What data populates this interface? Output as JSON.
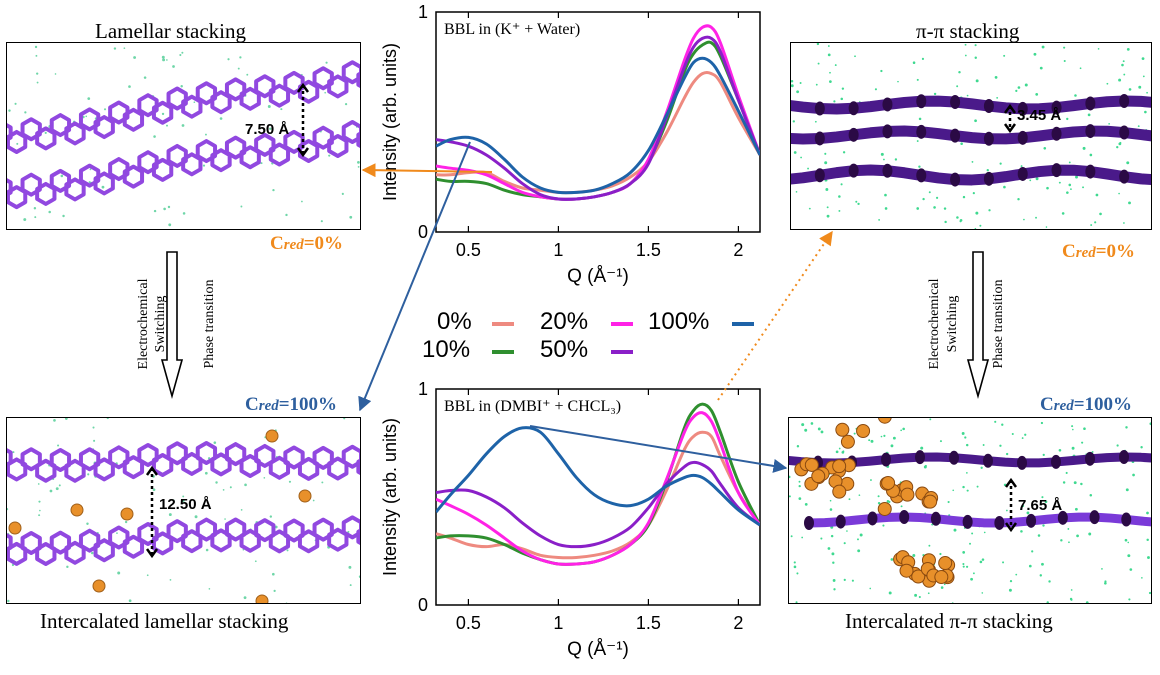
{
  "panels": {
    "top_left": {
      "title": "Lamellar stacking",
      "distance": "7.50 Å",
      "cred_prefix": "C",
      "cred_sub": "red",
      "cred_value": "=0%",
      "cred_color": "#f08a1c"
    },
    "bottom_left": {
      "title": "Intercalated lamellar stacking",
      "distance": "12.50 Å",
      "cred_prefix": "C",
      "cred_sub": "red",
      "cred_value": "=100%",
      "cred_color": "#2e5f9e"
    },
    "top_right": {
      "title": "π-π stacking",
      "distance": "3.45 Å",
      "cred_prefix": "C",
      "cred_sub": "red",
      "cred_value": "=0%",
      "cred_color": "#f08a1c"
    },
    "bottom_right": {
      "title": "Intercalated π-π  stacking",
      "distance": "7.65 Å",
      "cred_prefix": "C",
      "cred_sub": "red",
      "cred_value": "=100%",
      "cred_color": "#2e5f9e"
    }
  },
  "transitions": {
    "left": {
      "line1": "Electrochemical",
      "line2": "Switching",
      "line3": "Phase transition"
    },
    "right": {
      "line1": "Electrochemical",
      "line2": "Switching",
      "line3": "Phase transition"
    }
  },
  "colors": {
    "c0": "#ee8a80",
    "c10": "#2f8f2f",
    "c20": "#ff22e6",
    "c50": "#8a1fc8",
    "c100": "#1e63a8",
    "molecule": "#9148e0",
    "ion": "#e8902a",
    "orange_arrow": "#f08a1c",
    "blue_arrow": "#2e5f9e"
  },
  "legend": [
    {
      "label": "0%",
      "color": "#ee8a80"
    },
    {
      "label": "10%",
      "color": "#2f8f2f"
    },
    {
      "label": "20%",
      "color": "#ff22e6"
    },
    {
      "label": "50%",
      "color": "#8a1fc8"
    },
    {
      "label": "100%",
      "color": "#1e63a8"
    }
  ],
  "chart_data": [
    {
      "type": "line",
      "annotation": "BBL in (K⁺ + Water)",
      "xlabel": "Q (Å⁻¹)",
      "ylabel": "Intensity (arb. units)",
      "xlim": [
        0.32,
        2.12
      ],
      "ylim": [
        0,
        1
      ],
      "xticks": [
        "0.5",
        "1",
        "1.5",
        "2"
      ],
      "yticks": [
        "0",
        "1"
      ],
      "x": [
        0.32,
        0.4,
        0.5,
        0.6,
        0.7,
        0.8,
        0.9,
        1.0,
        1.1,
        1.2,
        1.3,
        1.4,
        1.5,
        1.6,
        1.7,
        1.75,
        1.8,
        1.85,
        1.9,
        2.0,
        2.12
      ],
      "series": [
        {
          "name": "0%",
          "values": [
            0.26,
            0.26,
            0.27,
            0.27,
            0.23,
            0.2,
            0.19,
            0.18,
            0.18,
            0.19,
            0.21,
            0.25,
            0.32,
            0.45,
            0.61,
            0.68,
            0.72,
            0.72,
            0.68,
            0.52,
            0.35
          ]
        },
        {
          "name": "10%",
          "values": [
            0.24,
            0.23,
            0.23,
            0.22,
            0.19,
            0.17,
            0.16,
            0.15,
            0.15,
            0.16,
            0.18,
            0.22,
            0.32,
            0.5,
            0.73,
            0.81,
            0.85,
            0.86,
            0.8,
            0.6,
            0.35
          ]
        },
        {
          "name": "20%",
          "values": [
            0.3,
            0.29,
            0.28,
            0.26,
            0.22,
            0.18,
            0.16,
            0.15,
            0.15,
            0.16,
            0.18,
            0.22,
            0.33,
            0.54,
            0.78,
            0.88,
            0.93,
            0.93,
            0.86,
            0.62,
            0.35
          ]
        },
        {
          "name": "50%",
          "values": [
            0.42,
            0.41,
            0.39,
            0.35,
            0.29,
            0.22,
            0.17,
            0.15,
            0.15,
            0.16,
            0.18,
            0.22,
            0.31,
            0.52,
            0.75,
            0.84,
            0.88,
            0.88,
            0.82,
            0.6,
            0.35
          ]
        },
        {
          "name": "100%",
          "values": [
            0.39,
            0.42,
            0.43,
            0.4,
            0.33,
            0.25,
            0.2,
            0.18,
            0.18,
            0.19,
            0.22,
            0.27,
            0.37,
            0.53,
            0.7,
            0.77,
            0.79,
            0.77,
            0.71,
            0.55,
            0.35
          ]
        }
      ]
    },
    {
      "type": "line",
      "annotation": "BBL in (DMBI⁺ + CHCL₃)",
      "xlabel": "Q (Å⁻¹)",
      "ylabel": "Intensity (arb. units)",
      "xlim": [
        0.32,
        2.12
      ],
      "ylim": [
        0,
        1
      ],
      "xticks": [
        "0.5",
        "1",
        "1.5",
        "2"
      ],
      "yticks": [
        "0",
        "1"
      ],
      "x": [
        0.32,
        0.4,
        0.5,
        0.6,
        0.7,
        0.8,
        0.9,
        1.0,
        1.1,
        1.2,
        1.3,
        1.4,
        1.5,
        1.6,
        1.7,
        1.75,
        1.8,
        1.85,
        1.9,
        2.0,
        2.12
      ],
      "series": [
        {
          "name": "0%",
          "values": [
            0.33,
            0.31,
            0.28,
            0.27,
            0.28,
            0.26,
            0.23,
            0.22,
            0.22,
            0.23,
            0.25,
            0.29,
            0.37,
            0.53,
            0.72,
            0.78,
            0.8,
            0.78,
            0.69,
            0.52,
            0.37
          ]
        },
        {
          "name": "10%",
          "values": [
            0.31,
            0.32,
            0.32,
            0.31,
            0.28,
            0.24,
            0.21,
            0.19,
            0.19,
            0.2,
            0.23,
            0.28,
            0.37,
            0.57,
            0.82,
            0.9,
            0.93,
            0.9,
            0.8,
            0.57,
            0.37
          ]
        },
        {
          "name": "20%",
          "values": [
            0.49,
            0.46,
            0.42,
            0.37,
            0.31,
            0.25,
            0.21,
            0.19,
            0.19,
            0.2,
            0.23,
            0.28,
            0.38,
            0.58,
            0.8,
            0.87,
            0.89,
            0.85,
            0.75,
            0.52,
            0.37
          ]
        },
        {
          "name": "50%",
          "values": [
            0.52,
            0.53,
            0.53,
            0.5,
            0.45,
            0.38,
            0.32,
            0.28,
            0.27,
            0.28,
            0.31,
            0.36,
            0.45,
            0.56,
            0.64,
            0.66,
            0.65,
            0.62,
            0.56,
            0.45,
            0.37
          ]
        },
        {
          "name": "100%",
          "values": [
            0.43,
            0.51,
            0.6,
            0.7,
            0.78,
            0.82,
            0.8,
            0.7,
            0.59,
            0.51,
            0.47,
            0.46,
            0.49,
            0.55,
            0.59,
            0.6,
            0.59,
            0.56,
            0.52,
            0.44,
            0.37
          ]
        }
      ]
    }
  ]
}
